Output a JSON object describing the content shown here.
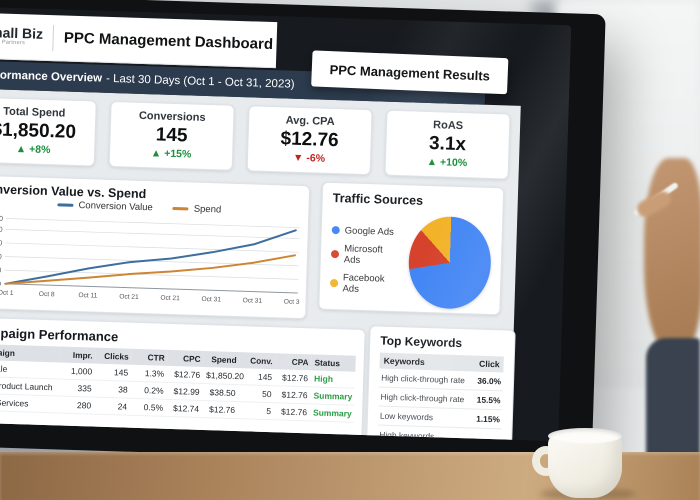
{
  "brand": {
    "name": "Small Biz",
    "tagline": "Growth Partners"
  },
  "header": {
    "title": "PPC Management Dashboard",
    "results_title": "PPC Management Results"
  },
  "overview": {
    "label": "Performance Overview",
    "range": "- Last 30 Days (Oct 1 - Oct 31, 2023)"
  },
  "kpis": [
    {
      "label": "Total Spend",
      "value": "$1,850.20",
      "delta": "+8%",
      "direction": "up"
    },
    {
      "label": "Conversions",
      "value": "145",
      "delta": "+15%",
      "direction": "up"
    },
    {
      "label": "Avg. CPA",
      "value": "$12.76",
      "delta": "-6%",
      "direction": "down"
    },
    {
      "label": "RoAS",
      "value": "3.1x",
      "delta": "+10%",
      "direction": "up"
    }
  ],
  "chart_data": [
    {
      "type": "line",
      "title": "Conversion Value vs. Spend",
      "x": [
        "Oct 1",
        "Oct 8",
        "Oct 11",
        "Oct 21",
        "Oct 21",
        "Oct 31",
        "Oct 31",
        "Oct 31"
      ],
      "series": [
        {
          "name": "Conversion Value",
          "color": "#3c6f9f",
          "values": [
            0,
            160,
            330,
            470,
            560,
            700,
            870,
            1150
          ]
        },
        {
          "name": "Spend",
          "color": "#cd8533",
          "values": [
            0,
            80,
            160,
            250,
            320,
            410,
            530,
            690
          ]
        }
      ],
      "y_ticks": [
        {
          "v": 0,
          "label": "$0"
        },
        {
          "v": 250,
          "label": "250"
        },
        {
          "v": 500,
          "label": "500"
        },
        {
          "v": 750,
          "label": "750"
        },
        {
          "v": 1000,
          "label": "1,000"
        },
        {
          "v": 1200,
          "label": "1,200"
        }
      ],
      "ylim": [
        0,
        1250
      ],
      "grid": true,
      "legend_position": "top"
    },
    {
      "type": "pie",
      "title": "Traffic Sources",
      "slices": [
        {
          "label": "Google Ads",
          "value": 72,
          "color": "#4285f4"
        },
        {
          "label": "Microsoft Ads",
          "value": 16,
          "color": "#d6432c"
        },
        {
          "label": "Facebook Ads",
          "value": 12,
          "color": "#f2b32a"
        }
      ],
      "legend_position": "left"
    }
  ],
  "campaign_table": {
    "title": "Campaign Performance",
    "headers": [
      "Campaign",
      "Impr.",
      "Clicks",
      "CTR",
      "CPC",
      "Spend",
      "Conv.",
      "CPA",
      "Status"
    ],
    "rows": [
      {
        "cells": [
          "Fall Sale",
          "1,000",
          "145",
          "1.3%",
          "$12.76",
          "$1,850.20",
          "145",
          "$12.76"
        ],
        "status": "High"
      },
      {
        "cells": [
          "New Product Launch",
          "335",
          "38",
          "0.2%",
          "$12.99",
          "$38.50",
          "50",
          "$12.76"
        ],
        "status": "Summary"
      },
      {
        "cells": [
          "Local Services",
          "280",
          "24",
          "0.5%",
          "$12.74",
          "$12.76",
          "5",
          "$12.76"
        ],
        "status": "Summary"
      }
    ]
  },
  "top_keywords": {
    "title": "Top Keywords",
    "headers": [
      "Keywords",
      "Click"
    ],
    "rows": [
      {
        "keyword": "High click-through rate",
        "click": "36.0%"
      },
      {
        "keyword": "High click-through rate",
        "click": "15.5%"
      },
      {
        "keyword": "Low keywords",
        "click": "1.15%"
      },
      {
        "keyword": "High keywords",
        "click": ""
      }
    ]
  },
  "colors": {
    "accent_navy": "#2c3b4d",
    "positive": "#1e8e3e",
    "negative": "#c5221f",
    "status_green": "#2a9d44"
  }
}
